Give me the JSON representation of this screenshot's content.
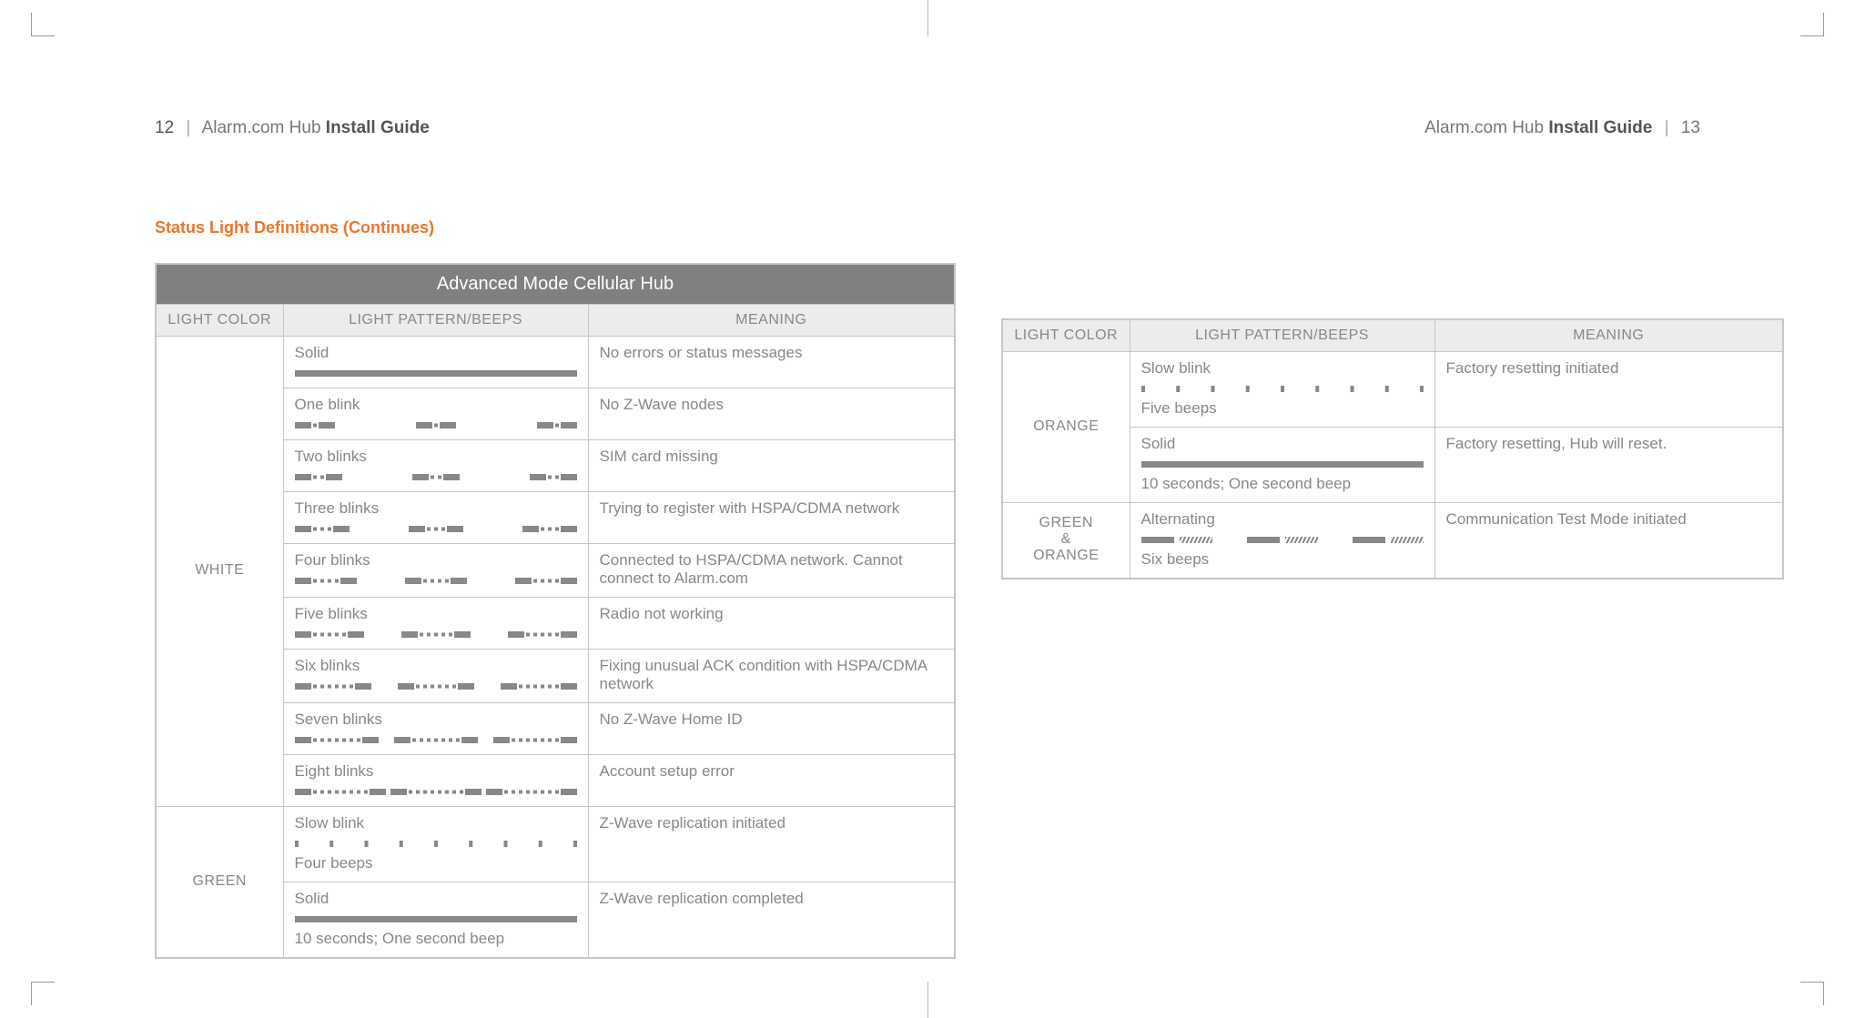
{
  "header_left": {
    "page": "12",
    "sep": "|",
    "brand": "Alarm.com Hub",
    "title": "Install Guide"
  },
  "header_right": {
    "brand": "Alarm.com Hub",
    "title": "Install Guide",
    "sep": "|",
    "page": "13"
  },
  "section_title": "Status Light Definitions (Continues)",
  "cols": {
    "light_color": "LIGHT COLOR",
    "pattern": "LIGHT PATTERN/BEEPS",
    "meaning": "MEANING"
  },
  "table1": {
    "title": "Advanced Mode Cellular Hub",
    "groups": [
      {
        "color": "WHITE",
        "rows": [
          {
            "pattern_label": "Solid",
            "pattern_type": "solid",
            "meaning": "No errors or status messages"
          },
          {
            "pattern_label": "One blink",
            "pattern_type": "blinks",
            "n": 1,
            "meaning": "No Z-Wave nodes"
          },
          {
            "pattern_label": "Two blinks",
            "pattern_type": "blinks",
            "n": 2,
            "meaning": "SIM card missing"
          },
          {
            "pattern_label": "Three blinks",
            "pattern_type": "blinks",
            "n": 3,
            "meaning": "Trying to register with HSPA/CDMA network"
          },
          {
            "pattern_label": "Four blinks",
            "pattern_type": "blinks",
            "n": 4,
            "meaning": "Connected to HSPA/CDMA network. Cannot connect to Alarm.com"
          },
          {
            "pattern_label": "Five blinks",
            "pattern_type": "blinks",
            "n": 5,
            "meaning": "Radio not working"
          },
          {
            "pattern_label": "Six blinks",
            "pattern_type": "blinks",
            "n": 6,
            "meaning": "Fixing unusual ACK condition with HSPA/CDMA network"
          },
          {
            "pattern_label": "Seven blinks",
            "pattern_type": "blinks",
            "n": 7,
            "meaning": "No Z-Wave Home ID"
          },
          {
            "pattern_label": "Eight blinks",
            "pattern_type": "blinks",
            "n": 8,
            "meaning": "Account setup error"
          }
        ]
      },
      {
        "color": "GREEN",
        "rows": [
          {
            "pattern_label": "Slow blink",
            "pattern_type": "slow",
            "beeps": "Four beeps",
            "meaning": "Z-Wave replication initiated"
          },
          {
            "pattern_label": "Solid",
            "pattern_type": "solid",
            "beeps": "10 seconds; One second beep",
            "meaning": "Z-Wave replication completed"
          }
        ]
      }
    ]
  },
  "table2": {
    "groups": [
      {
        "color": "ORANGE",
        "rows": [
          {
            "pattern_label": "Slow blink",
            "pattern_type": "slow",
            "beeps": "Five beeps",
            "meaning": "Factory resetting initiated"
          },
          {
            "pattern_label": "Solid",
            "pattern_type": "solid",
            "beeps": "10 seconds; One second beep",
            "meaning": "Factory resetting, Hub will reset."
          }
        ]
      },
      {
        "color_lines": [
          "GREEN",
          "&",
          "ORANGE"
        ],
        "rows": [
          {
            "pattern_label": "Alternating",
            "pattern_type": "alternating",
            "beeps": "Six beeps",
            "meaning": "Communication Test Mode initiated"
          }
        ]
      }
    ]
  },
  "style": {
    "bar_color": "#888888",
    "table_border": "#c7c7c7",
    "header_bg": "#ececec",
    "title_bg": "#808080",
    "accent": "#e8772c"
  }
}
